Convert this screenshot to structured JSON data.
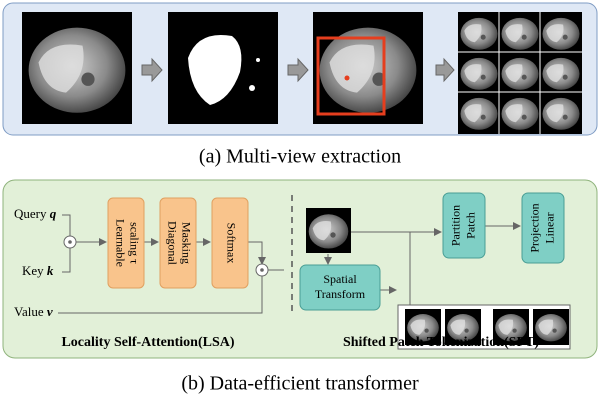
{
  "panel_a": {
    "caption": "(a) Multi-view extraction"
  },
  "panel_b": {
    "caption": "(b) Data-efficient transformer",
    "lsa": {
      "title": "Locality Self-Attention(LSA)",
      "inputs": [
        {
          "label": "Query",
          "symbol": "q"
        },
        {
          "label": "Key",
          "symbol": "k"
        },
        {
          "label": "Value",
          "symbol": "v"
        }
      ],
      "blocks": [
        [
          "Learnable",
          "scaling τ"
        ],
        [
          "Diagonal",
          "Masking"
        ],
        [
          "Softmax"
        ]
      ]
    },
    "spt": {
      "title": "Shifted Patch Tokenization(SPT)",
      "blocks": [
        [
          "Spatial",
          "Transform"
        ],
        [
          "Patch",
          "Partition"
        ],
        [
          "Linear",
          "Projection"
        ]
      ]
    }
  }
}
